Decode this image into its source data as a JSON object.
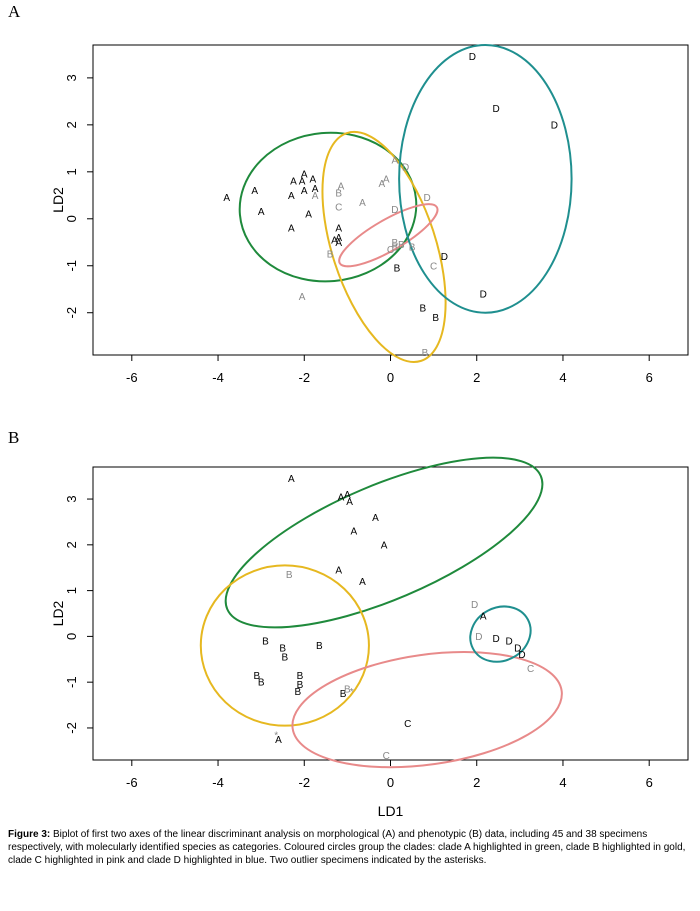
{
  "caption": {
    "label": "Figure 3:",
    "text": "Biplot of first two axes of the linear discriminant analysis on morphological (A) and phenotypic (B) data, including 45 and 38 specimens respectively, with molecularly identified species as categories. Coloured circles group the clades: clade A highlighted in green, clade B highlighted in gold, clade C highlighted in pink and clade D highlighted in blue. Two outlier specimens indicated by the asterisks."
  },
  "colors": {
    "A": "#1f8a3c",
    "B": "#e6b820",
    "C": "#e88a8a",
    "D": "#1f8f8f",
    "dimmed": "#888888"
  },
  "chart_data": [
    {
      "type": "scatter",
      "panel_label": "A",
      "xlabel": "",
      "ylabel": "LD2",
      "xlim": [
        -6.9,
        6.9
      ],
      "ylim": [
        -2.9,
        3.7
      ],
      "xticks": [
        -6,
        -4,
        -2,
        0,
        2,
        4,
        6
      ],
      "yticks": [
        -2,
        -1,
        0,
        1,
        2,
        3
      ],
      "points": [
        {
          "x": -3.8,
          "y": 0.45,
          "label": "A"
        },
        {
          "x": -3.15,
          "y": 0.6,
          "label": "A"
        },
        {
          "x": -3.0,
          "y": 0.15,
          "label": "A"
        },
        {
          "x": -2.3,
          "y": 0.5,
          "label": "A"
        },
        {
          "x": -2.25,
          "y": 0.8,
          "label": "A"
        },
        {
          "x": -2.05,
          "y": 0.8,
          "label": "A"
        },
        {
          "x": -2.0,
          "y": 0.95,
          "label": "A"
        },
        {
          "x": -2.0,
          "y": 0.6,
          "label": "A"
        },
        {
          "x": -1.8,
          "y": 0.85,
          "label": "A"
        },
        {
          "x": -1.75,
          "y": 0.65,
          "label": "A"
        },
        {
          "x": -1.75,
          "y": 0.5,
          "label": "A",
          "dim": true
        },
        {
          "x": -1.9,
          "y": 0.1,
          "label": "A"
        },
        {
          "x": -2.3,
          "y": -0.2,
          "label": "A"
        },
        {
          "x": -1.2,
          "y": -0.2,
          "label": "A"
        },
        {
          "x": -1.2,
          "y": -0.4,
          "label": "A"
        },
        {
          "x": -1.3,
          "y": -0.45,
          "label": "A"
        },
        {
          "x": -1.2,
          "y": -0.5,
          "label": "A"
        },
        {
          "x": -1.4,
          "y": -0.75,
          "label": "B",
          "dim": true
        },
        {
          "x": -1.2,
          "y": 0.55,
          "label": "B",
          "dim": true
        },
        {
          "x": -1.15,
          "y": 0.7,
          "label": "A",
          "dim": true
        },
        {
          "x": -1.2,
          "y": 0.25,
          "label": "C",
          "dim": true
        },
        {
          "x": -0.65,
          "y": 0.35,
          "label": "A",
          "dim": true
        },
        {
          "x": -0.2,
          "y": 0.75,
          "label": "A",
          "dim": true
        },
        {
          "x": -0.1,
          "y": 0.85,
          "label": "A",
          "dim": true
        },
        {
          "x": 0.1,
          "y": 1.25,
          "label": "A",
          "dim": true
        },
        {
          "x": 0.35,
          "y": 1.1,
          "label": "D",
          "dim": true
        },
        {
          "x": 0.1,
          "y": 0.2,
          "label": "D",
          "dim": true
        },
        {
          "x": 0.85,
          "y": 0.45,
          "label": "D",
          "dim": true
        },
        {
          "x": 0.1,
          "y": -0.5,
          "label": "B",
          "dim": true
        },
        {
          "x": 0.1,
          "y": -0.6,
          "label": "B",
          "dim": true
        },
        {
          "x": 0.25,
          "y": -0.55,
          "label": "B",
          "dim": true
        },
        {
          "x": 0.5,
          "y": -0.6,
          "label": "B",
          "dim": true
        },
        {
          "x": 0.0,
          "y": -0.65,
          "label": "C",
          "dim": true
        },
        {
          "x": 1.0,
          "y": -1.0,
          "label": "C",
          "dim": true
        },
        {
          "x": 1.25,
          "y": -0.8,
          "label": "D"
        },
        {
          "x": 0.15,
          "y": -1.05,
          "label": "B"
        },
        {
          "x": 0.75,
          "y": -1.9,
          "label": "B"
        },
        {
          "x": 1.05,
          "y": -2.1,
          "label": "B"
        },
        {
          "x": 0.8,
          "y": -2.85,
          "label": "B",
          "dim": true
        },
        {
          "x": -2.05,
          "y": -1.65,
          "label": "A",
          "dim": true
        },
        {
          "x": 2.15,
          "y": -1.6,
          "label": "D"
        },
        {
          "x": 1.9,
          "y": 3.45,
          "label": "D"
        },
        {
          "x": 2.45,
          "y": 2.35,
          "label": "D"
        },
        {
          "x": 3.8,
          "y": 2.0,
          "label": "D"
        }
      ],
      "ellipses": [
        {
          "clade": "A",
          "cx": -1.45,
          "cy": 0.25,
          "rx": 2.05,
          "ry": 1.58,
          "angle": -5
        },
        {
          "clade": "B",
          "cx": -0.15,
          "cy": -0.6,
          "rx": 1.2,
          "ry": 2.55,
          "angle": -18
        },
        {
          "clade": "C",
          "cx": -0.05,
          "cy": -0.35,
          "rx": 1.3,
          "ry": 0.33,
          "angle": -30
        },
        {
          "clade": "D",
          "cx": 2.2,
          "cy": 0.85,
          "rx": 2.0,
          "ry": 2.85,
          "angle": 0
        }
      ]
    },
    {
      "type": "scatter",
      "panel_label": "B",
      "xlabel": "LD1",
      "ylabel": "LD2",
      "xlim": [
        -6.9,
        6.9
      ],
      "ylim": [
        -2.7,
        3.7
      ],
      "xticks": [
        -6,
        -4,
        -2,
        0,
        2,
        4,
        6
      ],
      "yticks": [
        -2,
        -1,
        0,
        1,
        2,
        3
      ],
      "points": [
        {
          "x": -2.3,
          "y": 3.45,
          "label": "A"
        },
        {
          "x": -1.15,
          "y": 3.05,
          "label": "A"
        },
        {
          "x": -1.0,
          "y": 3.1,
          "label": "A"
        },
        {
          "x": -0.95,
          "y": 2.95,
          "label": "A"
        },
        {
          "x": -0.35,
          "y": 2.6,
          "label": "A"
        },
        {
          "x": -0.85,
          "y": 2.3,
          "label": "A"
        },
        {
          "x": -0.15,
          "y": 2.0,
          "label": "A"
        },
        {
          "x": -1.2,
          "y": 1.45,
          "label": "A"
        },
        {
          "x": -0.65,
          "y": 1.2,
          "label": "A"
        },
        {
          "x": -2.35,
          "y": 1.35,
          "label": "B",
          "dim": true
        },
        {
          "x": 2.15,
          "y": 0.45,
          "label": "A"
        },
        {
          "x": 1.95,
          "y": 0.7,
          "label": "D",
          "dim": true
        },
        {
          "x": 2.05,
          "y": 0.0,
          "label": "D",
          "dim": true
        },
        {
          "x": 2.45,
          "y": -0.05,
          "label": "D"
        },
        {
          "x": 2.75,
          "y": -0.1,
          "label": "D"
        },
        {
          "x": 2.95,
          "y": -0.25,
          "label": "D"
        },
        {
          "x": 3.05,
          "y": -0.4,
          "label": "D"
        },
        {
          "x": 3.25,
          "y": -0.7,
          "label": "C",
          "dim": true
        },
        {
          "x": -2.9,
          "y": -0.1,
          "label": "B"
        },
        {
          "x": -2.5,
          "y": -0.25,
          "label": "B"
        },
        {
          "x": -2.45,
          "y": -0.45,
          "label": "B"
        },
        {
          "x": -1.65,
          "y": -0.2,
          "label": "B"
        },
        {
          "x": -3.1,
          "y": -0.85,
          "label": "B"
        },
        {
          "x": -3.0,
          "y": -1.0,
          "label": "B"
        },
        {
          "x": -2.1,
          "y": -0.85,
          "label": "B"
        },
        {
          "x": -2.1,
          "y": -1.05,
          "label": "B"
        },
        {
          "x": -2.15,
          "y": -1.2,
          "label": "B"
        },
        {
          "x": -1.1,
          "y": -1.25,
          "label": "B"
        },
        {
          "x": -1.0,
          "y": -1.15,
          "label": "B",
          "dim": true
        },
        {
          "x": -0.9,
          "y": -1.2,
          "label": "*",
          "dim": true
        },
        {
          "x": 0.4,
          "y": -1.9,
          "label": "C"
        },
        {
          "x": -0.1,
          "y": -2.6,
          "label": "C",
          "dim": true
        },
        {
          "x": -2.65,
          "y": -2.15,
          "label": "*",
          "dim": true
        },
        {
          "x": -2.6,
          "y": -2.25,
          "label": "A"
        }
      ],
      "ellipses": [
        {
          "clade": "A",
          "cx": -0.15,
          "cy": 2.05,
          "rx": 3.95,
          "ry": 1.25,
          "angle": -23
        },
        {
          "clade": "B",
          "cx": -2.45,
          "cy": -0.2,
          "rx": 1.95,
          "ry": 1.75,
          "angle": 0
        },
        {
          "clade": "C",
          "cx": 0.85,
          "cy": -1.6,
          "rx": 3.15,
          "ry": 1.2,
          "angle": -8
        },
        {
          "clade": "D",
          "cx": 2.55,
          "cy": 0.05,
          "rx": 0.72,
          "ry": 0.58,
          "angle": -28
        }
      ]
    }
  ]
}
